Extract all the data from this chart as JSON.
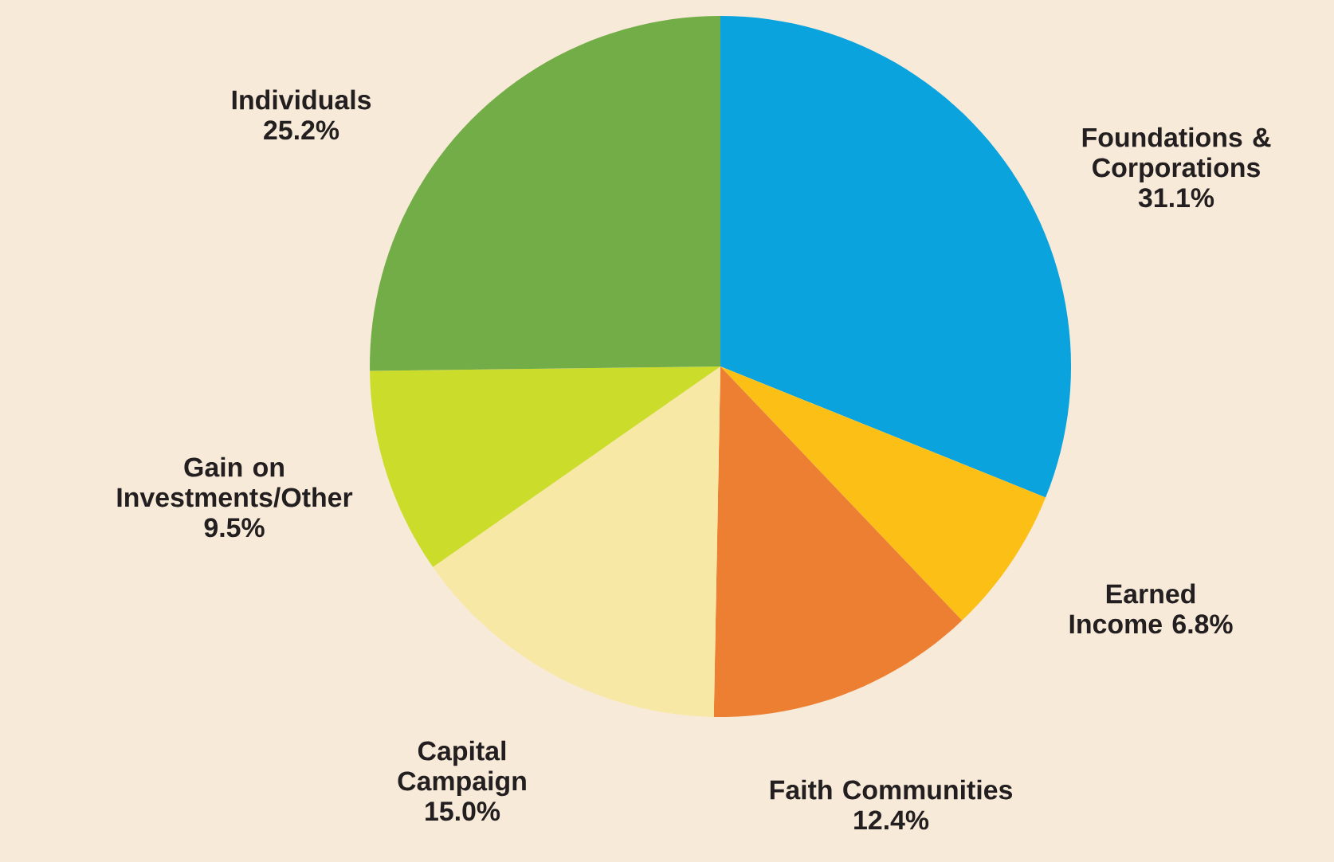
{
  "chart_data": {
    "type": "pie",
    "categories": [
      "Foundations & Corporations",
      "Earned Income",
      "Faith Communities",
      "Capital Campaign",
      "Gain on Investments/Other",
      "Individuals"
    ],
    "values": [
      31.1,
      6.8,
      12.4,
      15.0,
      9.5,
      25.2
    ],
    "value_labels": [
      "31.1%",
      "6.8%",
      "12.4%",
      "15.0%",
      "9.5%",
      "25.2%"
    ],
    "colors": [
      "#0aa3dd",
      "#fbbf15",
      "#ec7f31",
      "#f7e8a6",
      "#cbdd2a",
      "#72ad47"
    ]
  }
}
